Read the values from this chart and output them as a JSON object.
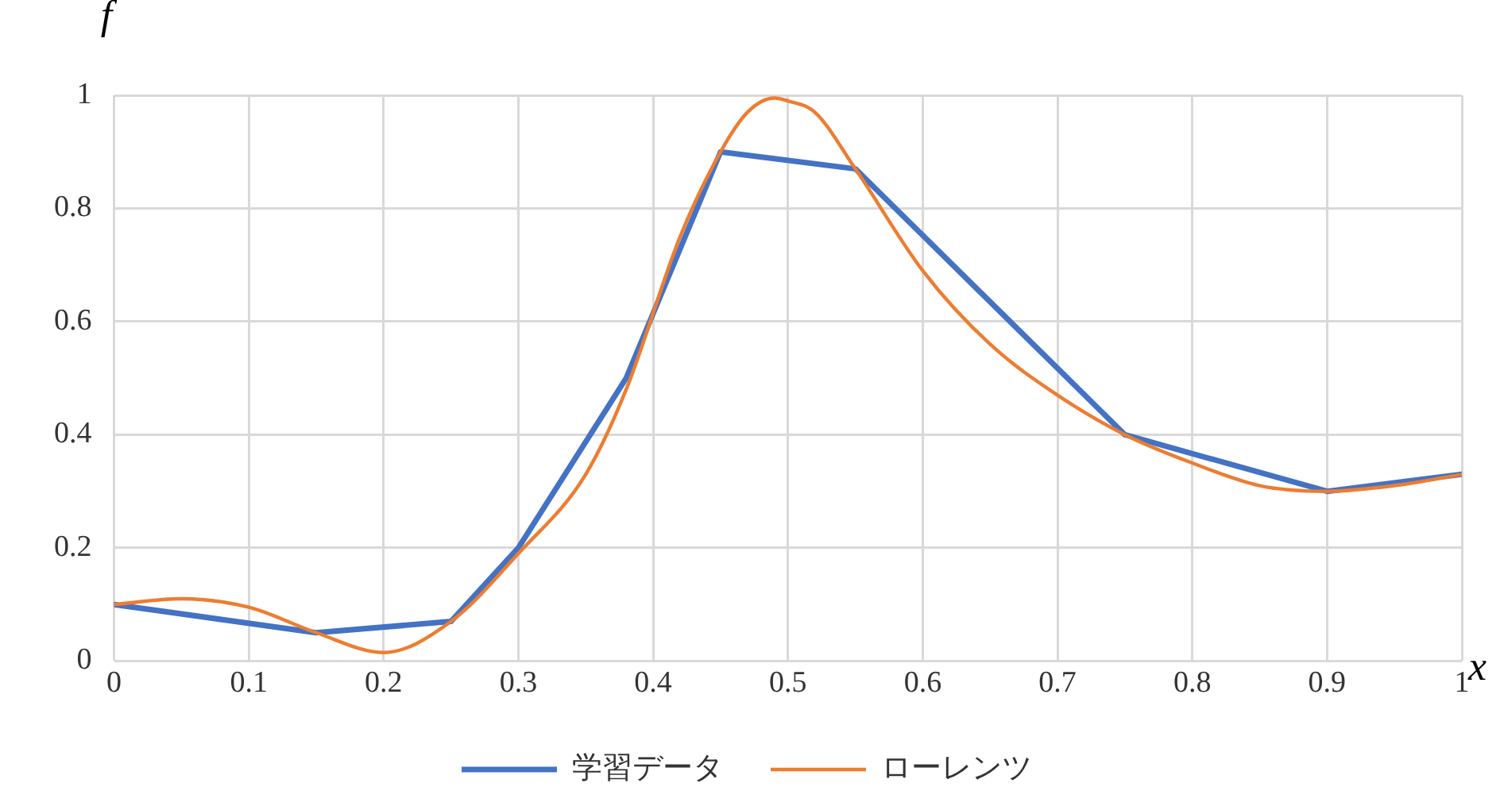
{
  "chart_data": {
    "type": "line",
    "xlabel": "x",
    "ylabel": "f",
    "xlim": [
      0,
      1
    ],
    "xticks": [
      0,
      0.1,
      0.2,
      0.3,
      0.4,
      0.5,
      0.6,
      0.7,
      0.8,
      0.9,
      1
    ],
    "ylim": [
      0,
      1
    ],
    "yticks": [
      0,
      0.2,
      0.4,
      0.6,
      0.8,
      1
    ],
    "grid": true,
    "legend": "bottom",
    "marker": "none",
    "line_style": "solid",
    "series": [
      {
        "name": "学習データ",
        "color": "#4472c4",
        "x": [
          0,
          0.15,
          0.25,
          0.3,
          0.38,
          0.45,
          0.55,
          0.75,
          0.9,
          1
        ],
        "values": [
          0.1,
          0.05,
          0.07,
          0.2,
          0.5,
          0.9,
          0.87,
          0.4,
          0.3,
          0.33
        ]
      },
      {
        "name": "ローレンツ",
        "color": "#ed7d31",
        "x": [
          0,
          0.05,
          0.1,
          0.15,
          0.2,
          0.25,
          0.3,
          0.35,
          0.38,
          0.42,
          0.45,
          0.47,
          0.49,
          0.5,
          0.52,
          0.55,
          0.6,
          0.65,
          0.7,
          0.75,
          0.8,
          0.85,
          0.9,
          0.95,
          1
        ],
        "values": [
          0.1,
          0.11,
          0.095,
          0.05,
          0.015,
          0.07,
          0.19,
          0.33,
          0.48,
          0.75,
          0.9,
          0.97,
          0.995,
          0.99,
          0.97,
          0.87,
          0.69,
          0.56,
          0.47,
          0.4,
          0.35,
          0.31,
          0.3,
          0.31,
          0.33
        ]
      }
    ]
  }
}
